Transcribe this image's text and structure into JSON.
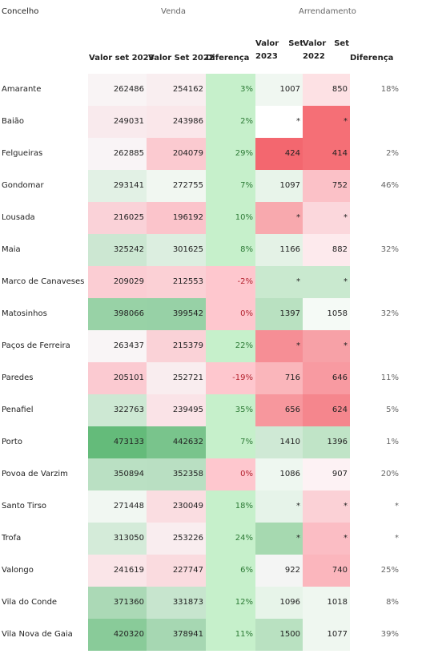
{
  "headers": {
    "concelho": "Concelho",
    "venda": "Venda",
    "arrendamento": "Arrendamento",
    "valor_set_2023": "Valor set 2023",
    "valor_set_2022": "Valor Set 2022",
    "diferenca": "Diferença",
    "arr_valor_2023": "Valor Set 2023",
    "arr_valor_2022": "Valor Set 2022",
    "arr_diferenca": "Diferença"
  },
  "colors": {
    "venda_diff_bg": "#c6f0cb",
    "venda_diff_neg_bg": "#fec7ce",
    "green_strong": "#5cb873",
    "red_strong": "#f26b72",
    "neutral": "#f7f9f7"
  },
  "chart_data": {
    "type": "table",
    "columns": [
      "Concelho",
      "Venda Valor set 2023",
      "Venda Valor Set 2022",
      "Venda Diferença",
      "Arrendamento Valor Set 2023",
      "Arrendamento Valor Set 2022",
      "Arrendamento Diferença"
    ],
    "rows": [
      {
        "concelho": "Amarante",
        "v23": "262486",
        "v22": "254162",
        "vd": "3%",
        "a23": "1007",
        "a22": "850",
        "ad": "18%"
      },
      {
        "concelho": "Baião",
        "v23": "249031",
        "v22": "243986",
        "vd": "2%",
        "a23": "*",
        "a22": "*",
        "ad": ""
      },
      {
        "concelho": "Felgueiras",
        "v23": "262885",
        "v22": "204079",
        "vd": "29%",
        "a23": "424",
        "a22": "414",
        "ad": "2%"
      },
      {
        "concelho": "Gondomar",
        "v23": "293141",
        "v22": "272755",
        "vd": "7%",
        "a23": "1097",
        "a22": "752",
        "ad": "46%"
      },
      {
        "concelho": "Lousada",
        "v23": "216025",
        "v22": "196192",
        "vd": "10%",
        "a23": "*",
        "a22": "*",
        "ad": ""
      },
      {
        "concelho": "Maia",
        "v23": "325242",
        "v22": "301625",
        "vd": "8%",
        "a23": "1166",
        "a22": "882",
        "ad": "32%"
      },
      {
        "concelho": "Marco de Canaveses",
        "v23": "209029",
        "v22": "212553",
        "vd": "-2%",
        "a23": "*",
        "a22": "*",
        "ad": ""
      },
      {
        "concelho": "Matosinhos",
        "v23": "398066",
        "v22": "399542",
        "vd": "0%",
        "a23": "1397",
        "a22": "1058",
        "ad": "32%"
      },
      {
        "concelho": "Paços de Ferreira",
        "v23": "263437",
        "v22": "215379",
        "vd": "22%",
        "a23": "*",
        "a22": "*",
        "ad": ""
      },
      {
        "concelho": "Paredes",
        "v23": "205101",
        "v22": "252721",
        "vd": "-19%",
        "a23": "716",
        "a22": "646",
        "ad": "11%"
      },
      {
        "concelho": "Penafiel",
        "v23": "322763",
        "v22": "239495",
        "vd": "35%",
        "a23": "656",
        "a22": "624",
        "ad": "5%"
      },
      {
        "concelho": "Porto",
        "v23": "473133",
        "v22": "442632",
        "vd": "7%",
        "a23": "1410",
        "a22": "1396",
        "ad": "1%"
      },
      {
        "concelho": "Povoa de Varzim",
        "v23": "350894",
        "v22": "352358",
        "vd": "0%",
        "a23": "1086",
        "a22": "907",
        "ad": "20%"
      },
      {
        "concelho": "Santo Tirso",
        "v23": "271448",
        "v22": "230049",
        "vd": "18%",
        "a23": "*",
        "a22": "*",
        "ad": "*"
      },
      {
        "concelho": "Trofa",
        "v23": "313050",
        "v22": "253226",
        "vd": "24%",
        "a23": "*",
        "a22": "*",
        "ad": "*"
      },
      {
        "concelho": "Valongo",
        "v23": "241619",
        "v22": "227747",
        "vd": "6%",
        "a23": "922",
        "a22": "740",
        "ad": "25%"
      },
      {
        "concelho": "Vila do Conde",
        "v23": "371360",
        "v22": "331873",
        "vd": "12%",
        "a23": "1096",
        "a22": "1018",
        "ad": "8%"
      },
      {
        "concelho": "Vila Nova de Gaia",
        "v23": "420320",
        "v22": "378941",
        "vd": "11%",
        "a23": "1500",
        "a22": "1077",
        "ad": "39%"
      }
    ],
    "arr_shades": [
      [
        "#f0f7f1",
        "#fde1e4"
      ],
      [
        "#ffffff",
        "#f56f76"
      ],
      [
        "#f3676f",
        "#f56f76"
      ],
      [
        "#e8f4ea",
        "#fbc1c7"
      ],
      [
        "#f8a9ae",
        "#fbd7dc"
      ],
      [
        "#e4f2e6",
        "#fdeaed"
      ],
      [
        "#c9e9cf",
        "#c9e9cf"
      ],
      [
        "#b9e1c1",
        "#f5faf6"
      ],
      [
        "#f68e95",
        "#f7a1a7"
      ],
      [
        "#fab6bb",
        "#f89aa1"
      ],
      [
        "#f7979d",
        "#f5868d"
      ],
      [
        "#cfe9d5",
        "#c0e4c7"
      ],
      [
        "#eef7f0",
        "#fdf2f4"
      ],
      [
        "#e6f3e9",
        "#fbd1d6"
      ],
      [
        "#a6d9b0",
        "#fbbdc4"
      ],
      [
        "#f4f5f4",
        "#fbb6bd"
      ],
      [
        "#e7f4e9",
        "#eff7f0"
      ],
      [
        "#b9e1c1",
        "#eff7f0"
      ]
    ],
    "venda_scale": {
      "min": 196192,
      "max": 473133
    }
  }
}
